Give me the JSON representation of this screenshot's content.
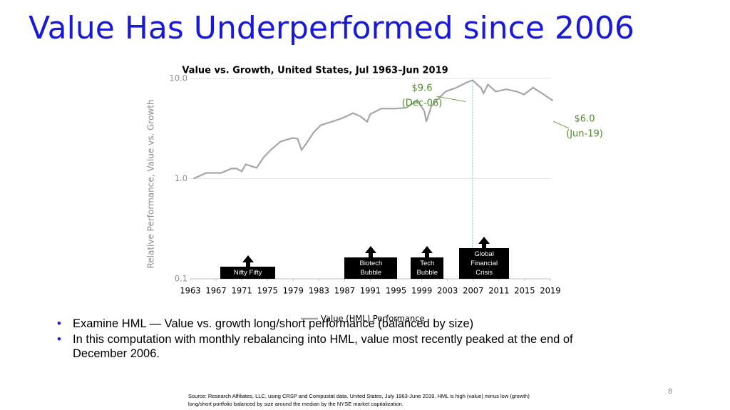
{
  "slide_title": "Value Has Underperformed since 2006",
  "bullets": [
    "Examine HML — Value vs. growth long/short performance (balanced by size)",
    "In this computation with monthly rebalancing into HML, value most recently peaked at the end of December 2006."
  ],
  "source": "Source: Research Affiliates, LLC, using CRSP and Compustat data. United States, July 1963-June 2019. HML is high (value) minus low (growth) long/short portfolio balanced by size around the median by the NYSE market capitalization.",
  "page_number": "8",
  "chart_data": {
    "type": "line",
    "title": "Value vs. Growth, United States, Jul 1963–Jun 2019",
    "y_label": "Relative Performance, Value vs. Growth",
    "log_scale": true,
    "grid": true,
    "legend": "bottom",
    "xlim": [
      1963,
      2019
    ],
    "xticks": [
      1963,
      1967,
      1971,
      1975,
      1979,
      1983,
      1987,
      1991,
      1995,
      1999,
      2003,
      2007,
      2011,
      2015,
      2019
    ],
    "ylim": [
      0.1,
      10
    ],
    "yticks": [
      0.1,
      {
        "value": 1,
        "label": "1.0"
      },
      {
        "value": 10,
        "label": "10.0"
      }
    ],
    "series": [
      {
        "name": "Value (HML) Performance",
        "color": "#a6a6a6",
        "x": [
          1963.5,
          1965.5,
          1967.8,
          1969.4,
          1970.2,
          1971,
          1971.6,
          1973.3,
          1974.4,
          1975.5,
          1977,
          1978.9,
          1979.7,
          1980.3,
          1981.1,
          1982.2,
          1983.3,
          1985,
          1986.6,
          1988.3,
          1989.4,
          1990.5,
          1991,
          1992.7,
          1994.9,
          1996.6,
          1998.3,
          1999.4,
          1999.7,
          2000.5,
          2001.6,
          2002.7,
          2004.4,
          2006.1,
          2006.9,
          2007.6,
          2008.2,
          2008.6,
          2009.3,
          2010.5,
          2012.1,
          2013.8,
          2014.9,
          2016.3,
          2017.7,
          2019.4
        ],
        "values": [
          1.0,
          1.14,
          1.14,
          1.26,
          1.26,
          1.18,
          1.39,
          1.28,
          1.63,
          1.93,
          2.34,
          2.55,
          2.5,
          1.93,
          2.27,
          2.9,
          3.42,
          3.7,
          4.0,
          4.5,
          4.2,
          3.7,
          4.4,
          5.0,
          5.0,
          5.1,
          6.1,
          4.7,
          3.7,
          5.3,
          6.3,
          7.4,
          8.1,
          9.2,
          9.6,
          8.7,
          8.1,
          7.1,
          8.7,
          7.4,
          7.8,
          7.4,
          6.9,
          8.1,
          7.1,
          6.0
        ]
      }
    ],
    "annotations": [
      {
        "label": "$9.6",
        "date": "(Dec-06)",
        "x": 2006.9,
        "value": 9.6,
        "color": "#4f8a2a"
      },
      {
        "label": "$6.0",
        "date": "(Jun-19)",
        "x": 2019.4,
        "value": 6.0,
        "color": "#4f8a2a"
      }
    ],
    "events": [
      {
        "label": "Nifty Fifty",
        "start": 1967.7,
        "end": 1976.2
      },
      {
        "label": "Biotech Bubble",
        "start": 1987,
        "end": 1995.2
      },
      {
        "label": "Tech Bubble",
        "start": 1997.3,
        "end": 2002.4
      },
      {
        "label": "Global Financial Crisis",
        "start": 2004.8,
        "end": 2012.6
      }
    ]
  }
}
